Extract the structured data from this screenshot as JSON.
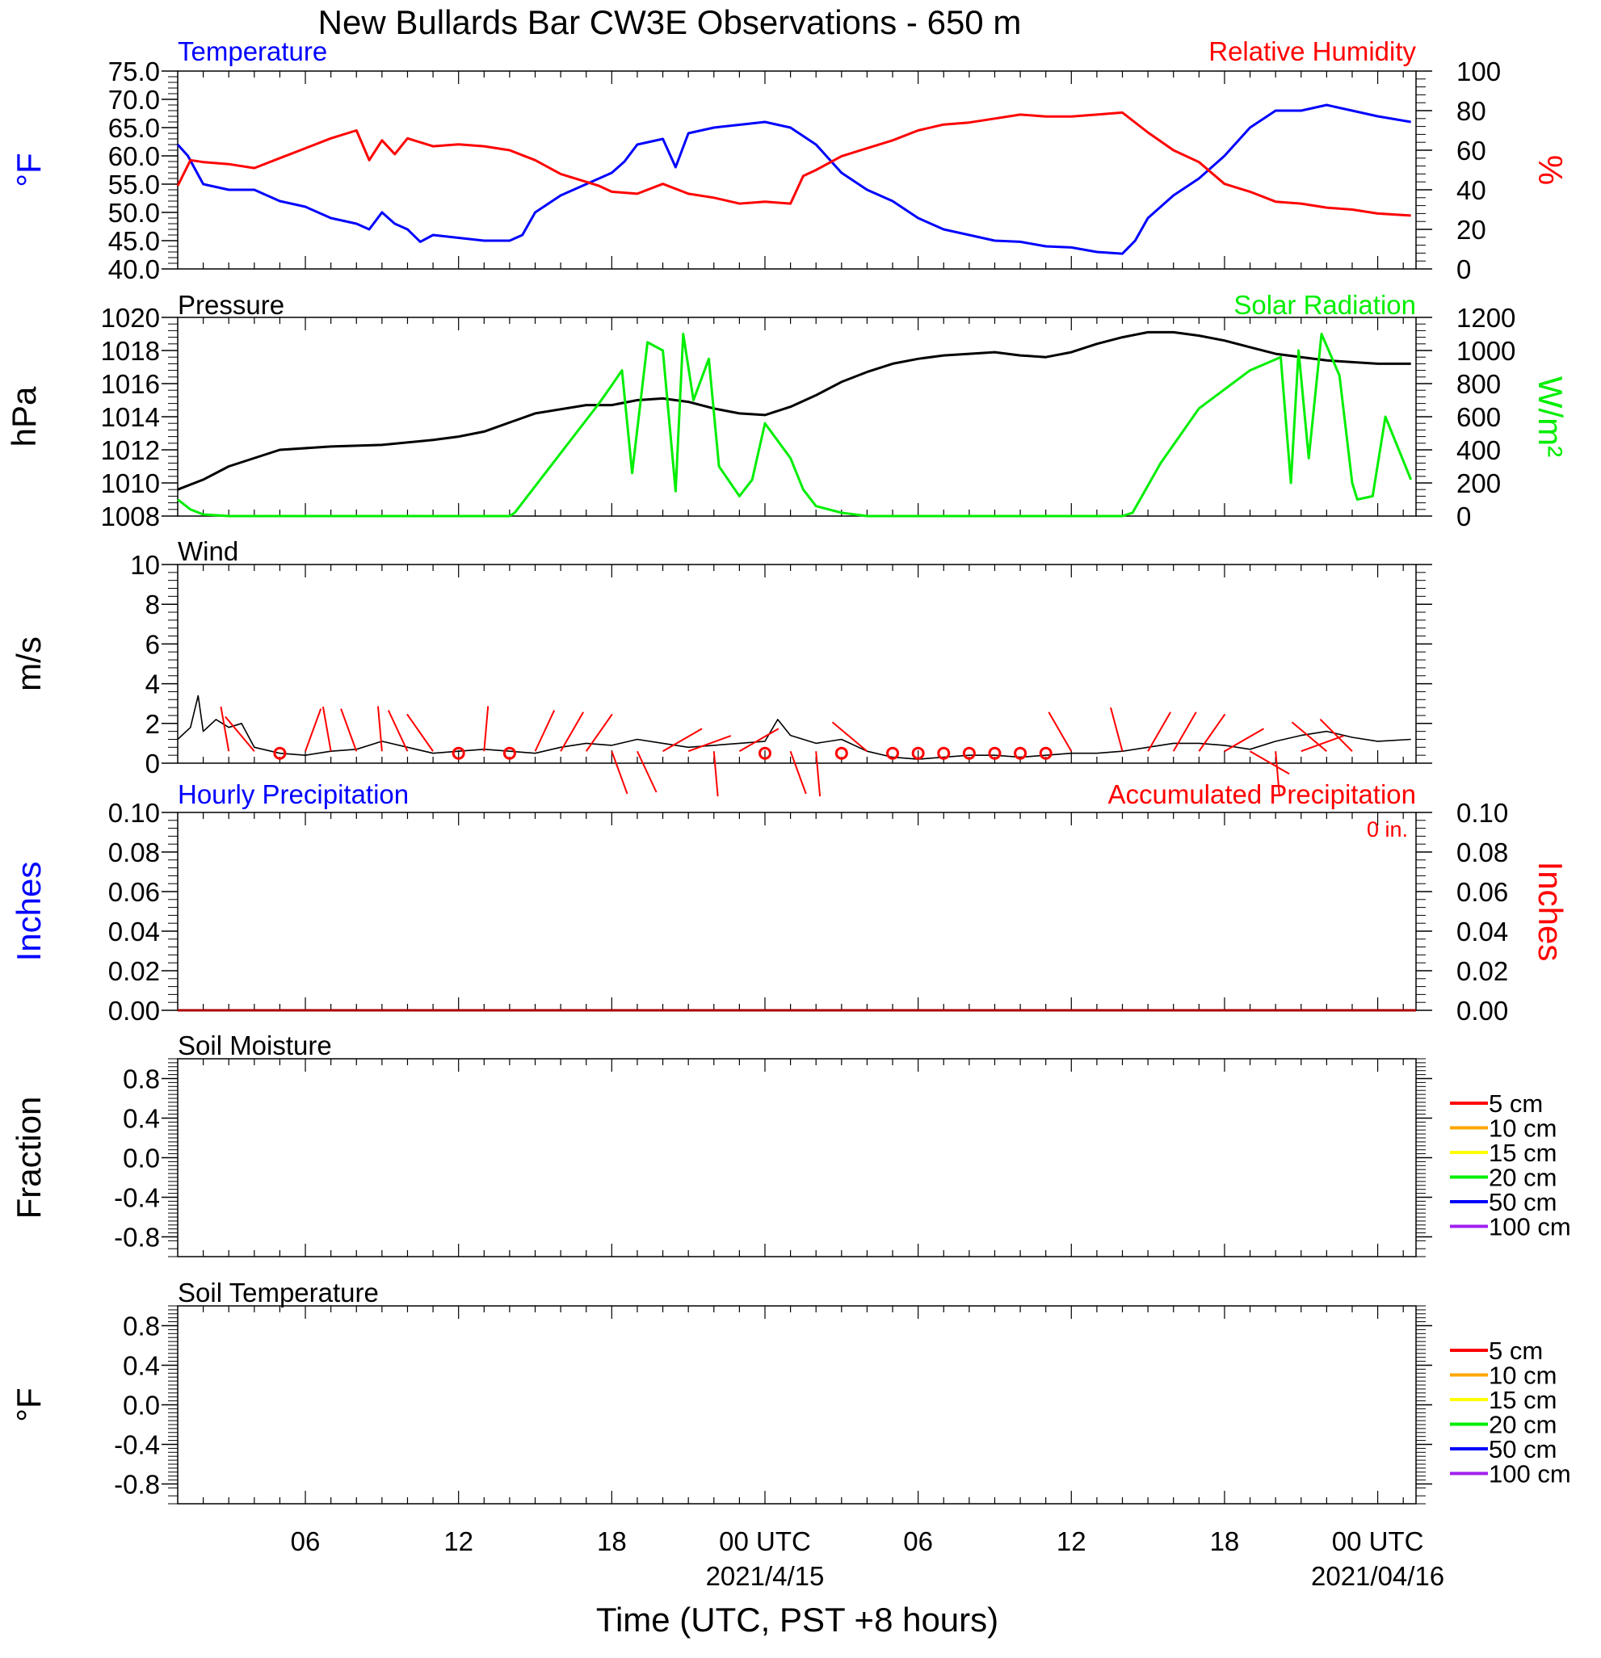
{
  "title": "New Bullards Bar CW3E Observations - 650 m",
  "xaxis": {
    "label": "Time (UTC, PST +8 hours)",
    "range_hours": [
      0,
      48.5
    ],
    "ticks": [
      {
        "hour": 5,
        "label": "06",
        "date": ""
      },
      {
        "hour": 11,
        "label": "12",
        "date": ""
      },
      {
        "hour": 17,
        "label": "18",
        "date": ""
      },
      {
        "hour": 23,
        "label": "00 UTC",
        "date": "2021/4/15"
      },
      {
        "hour": 29,
        "label": "06",
        "date": ""
      },
      {
        "hour": 35,
        "label": "12",
        "date": ""
      },
      {
        "hour": 41,
        "label": "18",
        "date": ""
      },
      {
        "hour": 47,
        "label": "00 UTC",
        "date": "2021/04/16"
      }
    ]
  },
  "colors": {
    "temperature": "#0000ff",
    "humidity": "#ff0000",
    "pressure": "#000000",
    "solar": "#00ee00",
    "wind": "#000000",
    "barb": "#ff0000"
  },
  "chart_data": [
    {
      "type": "line",
      "panel": "temperature-humidity",
      "title_left": "Temperature",
      "title_right": "Relative Humidity",
      "ylabel_left": "°F",
      "ylabel_right": "%",
      "ylim_left": [
        40,
        75
      ],
      "ylim_right": [
        0,
        100
      ],
      "yticks_left": [
        "40.0",
        "45.0",
        "50.0",
        "55.0",
        "60.0",
        "65.0",
        "70.0",
        "75.0"
      ],
      "yticks_right": [
        "0",
        "20",
        "40",
        "60",
        "80",
        "100"
      ],
      "series": [
        {
          "name": "Temperature",
          "axis": "left",
          "x": [
            0,
            0.4,
            1,
            2,
            3,
            4,
            5,
            6,
            7,
            7.5,
            8,
            8.5,
            9,
            9.5,
            10,
            11,
            12,
            13,
            13.5,
            14,
            15,
            16,
            17,
            17.5,
            18,
            19,
            19.5,
            20,
            21,
            22,
            23,
            24,
            25,
            26,
            27,
            28,
            29,
            30,
            31,
            32,
            33,
            34,
            35,
            36,
            37,
            37.5,
            38,
            39,
            40,
            41,
            42,
            43,
            44,
            45,
            46,
            47,
            48.3
          ],
          "y": [
            62,
            60,
            55,
            54,
            54,
            52,
            51,
            49,
            48,
            47,
            50,
            48,
            47,
            44.8,
            46,
            45.5,
            45,
            45,
            46,
            50,
            53,
            55,
            57,
            59,
            62,
            63,
            58,
            64,
            65,
            65.5,
            66,
            65,
            62,
            57,
            54,
            52,
            49,
            47,
            46,
            45,
            44.8,
            44,
            43.8,
            43,
            42.7,
            45,
            49,
            53,
            56,
            60,
            65,
            68,
            68,
            69,
            68,
            67,
            66
          ]
        },
        {
          "name": "Relative Humidity",
          "axis": "right",
          "x": [
            0,
            0.5,
            1,
            2,
            3,
            4,
            5,
            6,
            7,
            7.5,
            8,
            8.5,
            9,
            10,
            11,
            12,
            13,
            14,
            15,
            16,
            16.5,
            17,
            18,
            19,
            20,
            21,
            22,
            23,
            24,
            24.5,
            25,
            26,
            27,
            28,
            29,
            30,
            31,
            32,
            33,
            34,
            35,
            36,
            37,
            38,
            39,
            40,
            41,
            42,
            43,
            44,
            45,
            46,
            47,
            48.3
          ],
          "y": [
            42,
            55,
            54,
            53,
            51,
            56,
            61,
            66,
            70,
            55,
            65,
            58,
            66,
            62,
            63,
            62,
            60,
            55,
            48,
            44,
            42,
            39,
            38,
            43,
            38,
            36,
            33,
            34,
            33,
            47,
            50,
            57,
            61,
            65,
            70,
            73,
            74,
            76,
            78,
            77,
            77,
            78,
            79,
            69,
            60,
            54,
            43,
            39,
            34,
            33,
            31,
            30,
            28,
            27
          ]
        }
      ]
    },
    {
      "type": "line",
      "panel": "pressure-solar",
      "title_left": "Pressure",
      "title_right": "Solar Radiation",
      "ylabel_left": "hPa",
      "ylabel_right": "W/m²",
      "ylim_left": [
        1008,
        1020
      ],
      "ylim_right": [
        0,
        1200
      ],
      "yticks_left": [
        "1008",
        "1010",
        "1012",
        "1014",
        "1016",
        "1018",
        "1020"
      ],
      "yticks_right": [
        "0",
        "200",
        "400",
        "600",
        "800",
        "1000",
        "1200"
      ],
      "series": [
        {
          "name": "Pressure",
          "axis": "left",
          "x": [
            0,
            1,
            2,
            4,
            6,
            8,
            10,
            11,
            12,
            14,
            16,
            17,
            18,
            19,
            20,
            21,
            22,
            23,
            24,
            25,
            26,
            27,
            28,
            29,
            30,
            31,
            32,
            33,
            34,
            35,
            36,
            37,
            38,
            39,
            40,
            41,
            42,
            43,
            44,
            45,
            46,
            47,
            48.3
          ],
          "y": [
            1009.6,
            1010.2,
            1011,
            1012,
            1012.2,
            1012.3,
            1012.6,
            1012.8,
            1013.1,
            1014.2,
            1014.7,
            1014.7,
            1015,
            1015.1,
            1014.9,
            1014.5,
            1014.2,
            1014.1,
            1014.6,
            1015.3,
            1016.1,
            1016.7,
            1017.2,
            1017.5,
            1017.7,
            1017.8,
            1017.9,
            1017.7,
            1017.6,
            1017.9,
            1018.4,
            1018.8,
            1019.1,
            1019.1,
            1018.9,
            1018.6,
            1018.2,
            1017.8,
            1017.6,
            1017.4,
            1017.3,
            1017.2,
            1017.2
          ]
        },
        {
          "name": "Solar Radiation",
          "axis": "right",
          "x": [
            0,
            0.5,
            1,
            2,
            5,
            10,
            13,
            13.2,
            15,
            16.5,
            17,
            17.4,
            17.8,
            18.4,
            19,
            19.5,
            19.8,
            20.2,
            20.8,
            21.2,
            22,
            22.5,
            23,
            24,
            24.5,
            25,
            26,
            27,
            28,
            30,
            35,
            37,
            37.4,
            38.5,
            40,
            42,
            43.2,
            43.6,
            43.9,
            44.3,
            44.8,
            45.5,
            46,
            46.2,
            46.8,
            47.3,
            48.3
          ],
          "y": [
            100,
            40,
            10,
            0,
            0,
            0,
            0,
            20,
            380,
            680,
            790,
            880,
            260,
            1050,
            1000,
            150,
            1100,
            700,
            950,
            300,
            120,
            220,
            560,
            350,
            160,
            60,
            20,
            0,
            0,
            0,
            0,
            0,
            20,
            320,
            650,
            880,
            960,
            200,
            1000,
            350,
            1100,
            850,
            200,
            100,
            120,
            600,
            220
          ]
        }
      ]
    },
    {
      "type": "line",
      "panel": "wind",
      "title_left": "Wind",
      "ylabel_left": "m/s",
      "ylim_left": [
        0,
        10
      ],
      "yticks_left": [
        "0",
        "2",
        "4",
        "6",
        "8",
        "10"
      ],
      "series": [
        {
          "name": "Wind",
          "axis": "left",
          "x": [
            0,
            0.5,
            0.8,
            1,
            1.5,
            2,
            2.5,
            3,
            4,
            5,
            6,
            7,
            8,
            9,
            10,
            11,
            12,
            13,
            14,
            15,
            16,
            17,
            18,
            19,
            20,
            21,
            22,
            23,
            23.5,
            24,
            25,
            26,
            27,
            28,
            29,
            30,
            31,
            32,
            33,
            34,
            35,
            36,
            37,
            38,
            39,
            40,
            41,
            42,
            43,
            44,
            45,
            46,
            47,
            48.3
          ],
          "y": [
            1.2,
            1.8,
            3.4,
            1.6,
            2.2,
            1.8,
            2,
            0.8,
            0.5,
            0.4,
            0.6,
            0.7,
            1.1,
            0.8,
            0.5,
            0.6,
            0.7,
            0.6,
            0.5,
            0.8,
            1,
            0.9,
            1.2,
            1,
            0.8,
            0.9,
            1,
            1.1,
            2.2,
            1.4,
            1,
            1.2,
            0.6,
            0.3,
            0.2,
            0.3,
            0.4,
            0.4,
            0.3,
            0.4,
            0.5,
            0.5,
            0.6,
            0.8,
            1,
            1,
            0.9,
            0.7,
            1.1,
            1.4,
            1.6,
            1.3,
            1.1,
            1.2
          ]
        }
      ]
    },
    {
      "type": "line",
      "panel": "precipitation",
      "title_left": "Hourly Precipitation",
      "title_right": "Accumulated Precipitation",
      "annotation": "0 in.",
      "ylabel_left": "Inches",
      "ylabel_right": "Inches",
      "ylim_left": [
        0,
        0.1
      ],
      "ylim_right": [
        0,
        0.1
      ],
      "yticks_left": [
        "0.00",
        "0.02",
        "0.04",
        "0.06",
        "0.08",
        "0.10"
      ],
      "yticks_right": [
        "0.00",
        "0.02",
        "0.04",
        "0.06",
        "0.08",
        "0.10"
      ],
      "series": [
        {
          "name": "Hourly Precipitation",
          "axis": "left",
          "x": [
            0,
            48.5
          ],
          "y": [
            0,
            0
          ]
        },
        {
          "name": "Accumulated Precipitation",
          "axis": "right",
          "x": [
            0,
            48.5
          ],
          "y": [
            0,
            0
          ]
        }
      ]
    },
    {
      "type": "line",
      "panel": "soil-moisture",
      "title_left": "Soil Moisture",
      "ylabel_left": "Fraction",
      "ylim_left": [
        -1,
        1
      ],
      "yticks_left": [
        "-0.8",
        "-0.4",
        "0.0",
        "0.4",
        "0.8"
      ],
      "legend": [
        "5 cm",
        "10 cm",
        "15 cm",
        "20 cm",
        "50 cm",
        "100 cm"
      ],
      "series": []
    },
    {
      "type": "line",
      "panel": "soil-temperature",
      "title_left": "Soil Temperature",
      "ylabel_left": "°F",
      "ylim_left": [
        -1,
        1
      ],
      "yticks_left": [
        "-0.8",
        "-0.4",
        "0.0",
        "0.4",
        "0.8"
      ],
      "legend": [
        "5 cm",
        "10 cm",
        "15 cm",
        "20 cm",
        "50 cm",
        "100 cm"
      ],
      "series": []
    }
  ],
  "wind_barbs": [
    {
      "hour": 2,
      "type": "staff",
      "dir": 350
    },
    {
      "hour": 3,
      "type": "staff",
      "dir": 320
    },
    {
      "hour": 4,
      "type": "calm"
    },
    {
      "hour": 5,
      "type": "staff",
      "dir": 20
    },
    {
      "hour": 6,
      "type": "staff",
      "dir": 350
    },
    {
      "hour": 7,
      "type": "staff",
      "dir": 340
    },
    {
      "hour": 8,
      "type": "staff",
      "dir": 355
    },
    {
      "hour": 9,
      "type": "staff",
      "dir": 335
    },
    {
      "hour": 10,
      "type": "staff",
      "dir": 325
    },
    {
      "hour": 11,
      "type": "calm"
    },
    {
      "hour": 12,
      "type": "staff",
      "dir": 5
    },
    {
      "hour": 13,
      "type": "calm"
    },
    {
      "hour": 14,
      "type": "staff",
      "dir": 25
    },
    {
      "hour": 15,
      "type": "staff",
      "dir": 30
    },
    {
      "hour": 16,
      "type": "staff",
      "dir": 35
    },
    {
      "hour": 17,
      "type": "staff",
      "dir": 160
    },
    {
      "hour": 18,
      "type": "staff",
      "dir": 155
    },
    {
      "hour": 19,
      "type": "staff",
      "dir": 60
    },
    {
      "hour": 20,
      "type": "staff",
      "dir": 70
    },
    {
      "hour": 21,
      "type": "staff",
      "dir": 175
    },
    {
      "hour": 22,
      "type": "staff",
      "dir": 60
    },
    {
      "hour": 23,
      "type": "calm"
    },
    {
      "hour": 24,
      "type": "staff",
      "dir": 160
    },
    {
      "hour": 25,
      "type": "staff",
      "dir": 175
    },
    {
      "hour": 26,
      "type": "calm"
    },
    {
      "hour": 27,
      "type": "staff",
      "dir": 310
    },
    {
      "hour": 28,
      "type": "calm"
    },
    {
      "hour": 29,
      "type": "calm"
    },
    {
      "hour": 30,
      "type": "calm"
    },
    {
      "hour": 31,
      "type": "calm"
    },
    {
      "hour": 32,
      "type": "calm"
    },
    {
      "hour": 33,
      "type": "calm"
    },
    {
      "hour": 34,
      "type": "calm"
    },
    {
      "hour": 35,
      "type": "staff",
      "dir": 330
    },
    {
      "hour": 37,
      "type": "staff",
      "dir": 345
    },
    {
      "hour": 38,
      "type": "staff",
      "dir": 30
    },
    {
      "hour": 39,
      "type": "staff",
      "dir": 30
    },
    {
      "hour": 40,
      "type": "staff",
      "dir": 35
    },
    {
      "hour": 41,
      "type": "staff",
      "dir": 60
    },
    {
      "hour": 42,
      "type": "staff",
      "dir": 120
    },
    {
      "hour": 43,
      "type": "staff",
      "dir": 175
    },
    {
      "hour": 44,
      "type": "staff",
      "dir": 70
    },
    {
      "hour": 45,
      "type": "staff",
      "dir": 310
    },
    {
      "hour": 46,
      "type": "staff",
      "dir": 315
    }
  ],
  "legend_colors": [
    "#ff0000",
    "#ffa500",
    "#ffff00",
    "#00ee00",
    "#0000ff",
    "#a020f0"
  ]
}
